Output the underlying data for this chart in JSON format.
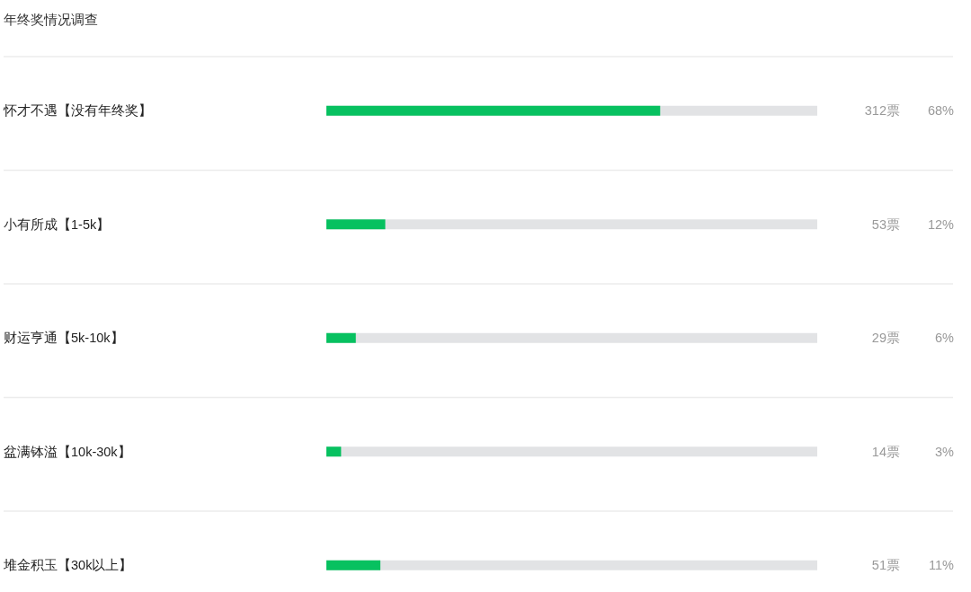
{
  "chart_data": {
    "type": "bar",
    "orientation": "horizontal",
    "title": "年终奖情况调查",
    "categories": [
      "怀才不遇【没有年终奖】",
      "小有所成【1-5k】",
      "财运亨通【5k-10k】",
      "盆满钵溢【10k-30k】",
      "堆金积玉【30k以上】"
    ],
    "values": [
      68,
      12,
      6,
      3,
      11
    ],
    "value_labels": [
      "68%",
      "12%",
      "6%",
      "3%",
      "11%"
    ],
    "color": "#07c160",
    "xlim": [
      0,
      100
    ],
    "tick_labels": "y",
    "grid": "y",
    "annotations": [
      "312票",
      "53票",
      "29票",
      "14票",
      "51票"
    ]
  }
}
